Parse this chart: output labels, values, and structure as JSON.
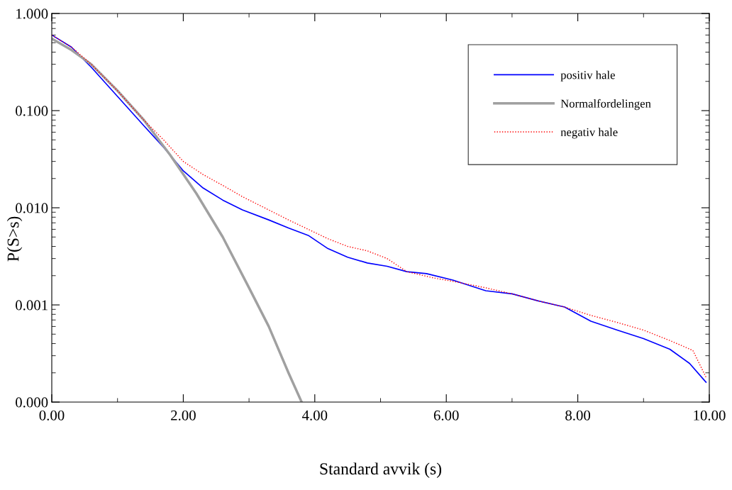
{
  "chart_data": {
    "type": "line",
    "xlabel": "Standard avvik (s)",
    "ylabel": "P(S>s)",
    "log": "y",
    "xlim": [
      0,
      10
    ],
    "xticks": [
      {
        "value": 0,
        "label": "0.00"
      },
      {
        "value": 2,
        "label": "2.00"
      },
      {
        "value": 4,
        "label": "4.00"
      },
      {
        "value": 6,
        "label": "6.00"
      },
      {
        "value": 8,
        "label": "8.00"
      },
      {
        "value": 10,
        "label": "10.00"
      }
    ],
    "ylim": [
      0.0001,
      1
    ],
    "yticks": [
      {
        "value": 0.0001,
        "label": "0.000"
      },
      {
        "value": 0.001,
        "label": "0.001"
      },
      {
        "value": 0.01,
        "label": "0.010"
      },
      {
        "value": 0.1,
        "label": "0.100"
      },
      {
        "value": 1,
        "label": "1.000"
      }
    ],
    "grid": false,
    "legend": "top right",
    "marker": "none",
    "series": [
      {
        "name": "positiv hale",
        "color": "#0000ff",
        "line_style": "solid",
        "x": [
          0,
          0.3,
          0.6,
          1.0,
          1.4,
          1.7,
          2.0,
          2.3,
          2.6,
          2.9,
          3.3,
          3.6,
          3.9,
          4.2,
          4.5,
          4.8,
          5.1,
          5.4,
          5.7,
          6.1,
          6.6,
          7.0,
          7.4,
          7.8,
          8.2,
          8.6,
          9.0,
          9.4,
          9.7,
          9.95
        ],
        "values": [
          0.6,
          0.45,
          0.28,
          0.14,
          0.07,
          0.042,
          0.024,
          0.016,
          0.012,
          0.0095,
          0.0075,
          0.0062,
          0.0052,
          0.0038,
          0.0031,
          0.0027,
          0.0025,
          0.0022,
          0.0021,
          0.0018,
          0.0014,
          0.0013,
          0.0011,
          0.00095,
          0.00068,
          0.00055,
          0.00045,
          0.00035,
          0.00025,
          0.00016
        ]
      },
      {
        "name": "Normalfordelingen",
        "color": "#a0a0a0",
        "line_style": "solid",
        "x": [
          0,
          0.3,
          0.6,
          1,
          1.4,
          1.8,
          2.2,
          2.6,
          3.0,
          3.3,
          3.6,
          3.8
        ],
        "values": [
          0.55,
          0.42,
          0.3,
          0.16,
          0.08,
          0.035,
          0.014,
          0.005,
          0.0015,
          0.0006,
          0.0002,
          0.0001
        ]
      },
      {
        "name": "negativ hale",
        "color": "#ff0000",
        "line_style": "dotted",
        "x": [
          0,
          0.3,
          0.6,
          1,
          1.4,
          1.7,
          2.0,
          2.3,
          2.6,
          2.9,
          3.3,
          3.6,
          3.9,
          4.2,
          4.5,
          4.8,
          5.1,
          5.4,
          5.8,
          6.2,
          6.6,
          7.0,
          7.4,
          7.8,
          8.2,
          8.6,
          9.0,
          9.4,
          9.75,
          9.95
        ],
        "values": [
          0.6,
          0.45,
          0.3,
          0.16,
          0.08,
          0.05,
          0.03,
          0.022,
          0.017,
          0.013,
          0.0095,
          0.0075,
          0.006,
          0.0048,
          0.004,
          0.0036,
          0.003,
          0.0022,
          0.0019,
          0.0017,
          0.0015,
          0.0013,
          0.0011,
          0.00095,
          0.00078,
          0.00066,
          0.00055,
          0.00043,
          0.00034,
          0.00018
        ]
      }
    ]
  }
}
